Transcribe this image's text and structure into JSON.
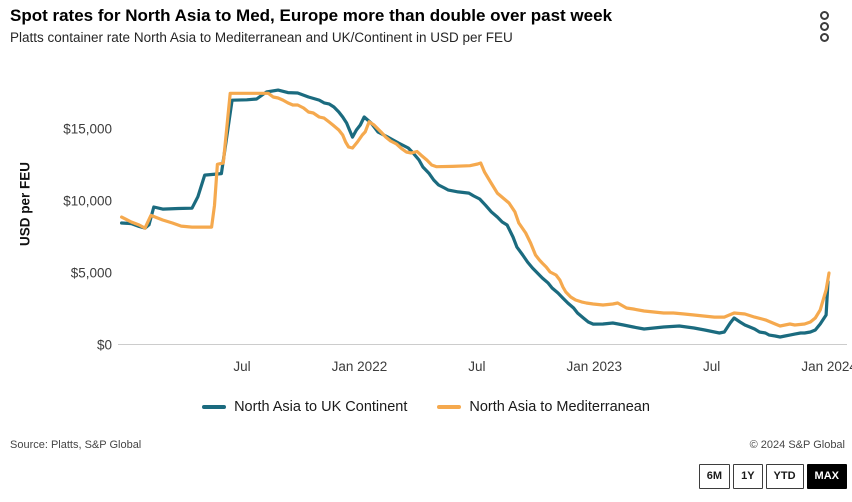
{
  "header": {
    "title": "Spot rates for North Asia to Med, Europe more than double over past week",
    "subtitle": "Platts container rate North Asia to Mediterranean and UK/Continent in USD per FEU",
    "menu_icon": "kebab-menu-icon"
  },
  "chart_data": {
    "type": "line",
    "title": "Spot rates for North Asia to Med, Europe more than double over past week",
    "xlabel": "",
    "ylabel": "USD per FEU",
    "x_unit": "months since Jan 2021",
    "xlim": [
      0,
      36.5
    ],
    "ylim": [
      0,
      18100
    ],
    "grid": "baseline-only",
    "legend_position": "bottom",
    "y_ticks": [
      {
        "label": "$0",
        "value": 0
      },
      {
        "label": "$5,000",
        "value": 5000
      },
      {
        "label": "$10,000",
        "value": 10000
      },
      {
        "label": "$15,000",
        "value": 15000
      }
    ],
    "x_ticks": [
      {
        "label": "Jul",
        "month": 6
      },
      {
        "label": "Jan 2022",
        "month": 12
      },
      {
        "label": "Jul",
        "month": 18
      },
      {
        "label": "Jan 2023",
        "month": 24
      },
      {
        "label": "Jul",
        "month": 30
      },
      {
        "label": "Jan 2024",
        "month": 36
      }
    ],
    "series": [
      {
        "id": "north-asia-uk-continent",
        "name": "North Asia to UK Continent",
        "color": "#1b6b7f",
        "points": [
          [
            0.1,
            8470
          ],
          [
            0.6,
            8430
          ],
          [
            1.0,
            8230
          ],
          [
            1.3,
            8120
          ],
          [
            1.5,
            8350
          ],
          [
            1.75,
            9580
          ],
          [
            2.2,
            9440
          ],
          [
            3.0,
            9480
          ],
          [
            3.7,
            9500
          ],
          [
            4.0,
            10300
          ],
          [
            4.35,
            11800
          ],
          [
            5.2,
            11900
          ],
          [
            5.75,
            17000
          ],
          [
            6.5,
            17030
          ],
          [
            7.0,
            17080
          ],
          [
            7.5,
            17570
          ],
          [
            8.1,
            17700
          ],
          [
            8.6,
            17530
          ],
          [
            9.1,
            17500
          ],
          [
            9.65,
            17220
          ],
          [
            10.2,
            17010
          ],
          [
            10.45,
            16810
          ],
          [
            10.7,
            16740
          ],
          [
            10.95,
            16530
          ],
          [
            11.2,
            16180
          ],
          [
            11.4,
            15830
          ],
          [
            11.6,
            15420
          ],
          [
            11.75,
            14930
          ],
          [
            11.9,
            14440
          ],
          [
            12.1,
            14930
          ],
          [
            12.3,
            15280
          ],
          [
            12.5,
            15830
          ],
          [
            12.85,
            15420
          ],
          [
            13.2,
            14800
          ],
          [
            13.7,
            14440
          ],
          [
            14.25,
            14030
          ],
          [
            14.75,
            13680
          ],
          [
            15.0,
            13330
          ],
          [
            15.3,
            12850
          ],
          [
            15.5,
            12360
          ],
          [
            15.8,
            11940
          ],
          [
            16.05,
            11460
          ],
          [
            16.3,
            11110
          ],
          [
            16.6,
            10900
          ],
          [
            16.8,
            10760
          ],
          [
            17.3,
            10630
          ],
          [
            17.85,
            10550
          ],
          [
            18.1,
            10350
          ],
          [
            18.4,
            10140
          ],
          [
            18.7,
            9700
          ],
          [
            19.0,
            9240
          ],
          [
            19.3,
            8890
          ],
          [
            19.55,
            8540
          ],
          [
            19.8,
            8330
          ],
          [
            20.1,
            7500
          ],
          [
            20.3,
            6800
          ],
          [
            20.6,
            6250
          ],
          [
            20.85,
            5760
          ],
          [
            21.1,
            5350
          ],
          [
            21.35,
            5000
          ],
          [
            21.6,
            4650
          ],
          [
            21.9,
            4300
          ],
          [
            22.1,
            3960
          ],
          [
            22.4,
            3610
          ],
          [
            22.65,
            3260
          ],
          [
            22.9,
            2920
          ],
          [
            23.2,
            2570
          ],
          [
            23.4,
            2220
          ],
          [
            23.7,
            1875
          ],
          [
            23.95,
            1600
          ],
          [
            24.2,
            1450
          ],
          [
            24.7,
            1460
          ],
          [
            25.2,
            1530
          ],
          [
            25.75,
            1390
          ],
          [
            26.25,
            1250
          ],
          [
            26.8,
            1110
          ],
          [
            27.3,
            1180
          ],
          [
            27.8,
            1250
          ],
          [
            28.6,
            1320
          ],
          [
            29.35,
            1180
          ],
          [
            29.9,
            1040
          ],
          [
            30.4,
            900
          ],
          [
            30.65,
            830
          ],
          [
            30.9,
            900
          ],
          [
            31.2,
            1530
          ],
          [
            31.4,
            1875
          ],
          [
            31.7,
            1600
          ],
          [
            31.95,
            1390
          ],
          [
            32.2,
            1250
          ],
          [
            32.45,
            1110
          ],
          [
            32.7,
            900
          ],
          [
            33.0,
            830
          ],
          [
            33.2,
            690
          ],
          [
            33.5,
            625
          ],
          [
            33.75,
            555
          ],
          [
            34.0,
            625
          ],
          [
            34.25,
            690
          ],
          [
            34.5,
            760
          ],
          [
            34.8,
            830
          ],
          [
            35.0,
            830
          ],
          [
            35.3,
            900
          ],
          [
            35.55,
            1040
          ],
          [
            35.8,
            1460
          ],
          [
            36.1,
            2080
          ],
          [
            36.2,
            4400
          ]
        ]
      },
      {
        "id": "north-asia-mediterranean",
        "name": "North Asia to Mediterranean",
        "color": "#f5a94e",
        "points": [
          [
            0.1,
            8880
          ],
          [
            0.6,
            8540
          ],
          [
            1.0,
            8330
          ],
          [
            1.3,
            8120
          ],
          [
            1.6,
            9000
          ],
          [
            2.2,
            8680
          ],
          [
            2.7,
            8470
          ],
          [
            3.15,
            8260
          ],
          [
            3.7,
            8190
          ],
          [
            4.7,
            8190
          ],
          [
            4.85,
            9700
          ],
          [
            5.0,
            12550
          ],
          [
            5.3,
            12640
          ],
          [
            5.65,
            17480
          ],
          [
            6.3,
            17480
          ],
          [
            7.0,
            17480
          ],
          [
            7.6,
            17480
          ],
          [
            7.85,
            17220
          ],
          [
            8.1,
            17150
          ],
          [
            8.35,
            17010
          ],
          [
            8.6,
            16810
          ],
          [
            8.85,
            16670
          ],
          [
            9.1,
            16670
          ],
          [
            9.4,
            16460
          ],
          [
            9.65,
            16180
          ],
          [
            9.9,
            16110
          ],
          [
            10.2,
            15830
          ],
          [
            10.45,
            15760
          ],
          [
            10.7,
            15490
          ],
          [
            10.9,
            15280
          ],
          [
            11.2,
            14930
          ],
          [
            11.4,
            14580
          ],
          [
            11.55,
            14100
          ],
          [
            11.7,
            13750
          ],
          [
            11.9,
            13680
          ],
          [
            12.15,
            14100
          ],
          [
            12.4,
            14580
          ],
          [
            12.55,
            14800
          ],
          [
            12.75,
            15500
          ],
          [
            13.0,
            15280
          ],
          [
            13.35,
            14800
          ],
          [
            13.6,
            14440
          ],
          [
            13.85,
            14170
          ],
          [
            14.15,
            13960
          ],
          [
            14.4,
            13650
          ],
          [
            14.65,
            13400
          ],
          [
            14.9,
            13330
          ],
          [
            15.2,
            13440
          ],
          [
            15.4,
            13190
          ],
          [
            15.7,
            12850
          ],
          [
            15.95,
            12500
          ],
          [
            16.2,
            12380
          ],
          [
            17.0,
            12400
          ],
          [
            17.9,
            12450
          ],
          [
            18.3,
            12570
          ],
          [
            18.45,
            12640
          ],
          [
            18.65,
            12000
          ],
          [
            18.95,
            11320
          ],
          [
            19.3,
            10550
          ],
          [
            19.9,
            9860
          ],
          [
            20.2,
            9240
          ],
          [
            20.4,
            8470
          ],
          [
            20.75,
            7780
          ],
          [
            21.0,
            7080
          ],
          [
            21.25,
            6250
          ],
          [
            21.45,
            5900
          ],
          [
            21.6,
            5690
          ],
          [
            21.8,
            5420
          ],
          [
            22.0,
            5070
          ],
          [
            22.3,
            4860
          ],
          [
            22.5,
            4510
          ],
          [
            22.65,
            4030
          ],
          [
            22.8,
            3680
          ],
          [
            23.05,
            3330
          ],
          [
            23.3,
            3125
          ],
          [
            23.6,
            2990
          ],
          [
            23.85,
            2920
          ],
          [
            24.2,
            2850
          ],
          [
            24.7,
            2780
          ],
          [
            25.2,
            2850
          ],
          [
            25.45,
            2920
          ],
          [
            25.9,
            2570
          ],
          [
            26.25,
            2500
          ],
          [
            26.8,
            2360
          ],
          [
            27.3,
            2290
          ],
          [
            27.8,
            2220
          ],
          [
            28.3,
            2220
          ],
          [
            28.85,
            2150
          ],
          [
            29.35,
            2080
          ],
          [
            29.9,
            2010
          ],
          [
            30.4,
            1940
          ],
          [
            30.9,
            1940
          ],
          [
            31.4,
            2220
          ],
          [
            31.95,
            2150
          ],
          [
            32.45,
            1940
          ],
          [
            33.0,
            1740
          ],
          [
            33.5,
            1460
          ],
          [
            33.75,
            1320
          ],
          [
            34.25,
            1460
          ],
          [
            34.5,
            1390
          ],
          [
            35.0,
            1460
          ],
          [
            35.3,
            1600
          ],
          [
            35.55,
            1875
          ],
          [
            35.8,
            2430
          ],
          [
            36.1,
            3820
          ],
          [
            36.25,
            5000
          ]
        ]
      }
    ]
  },
  "footer": {
    "source": "Source: Platts, S&P Global",
    "copyright": "© 2024 S&P Global"
  },
  "range_buttons": [
    {
      "label": "6M",
      "active": false
    },
    {
      "label": "1Y",
      "active": false
    },
    {
      "label": "YTD",
      "active": false
    },
    {
      "label": "MAX",
      "active": true
    }
  ]
}
